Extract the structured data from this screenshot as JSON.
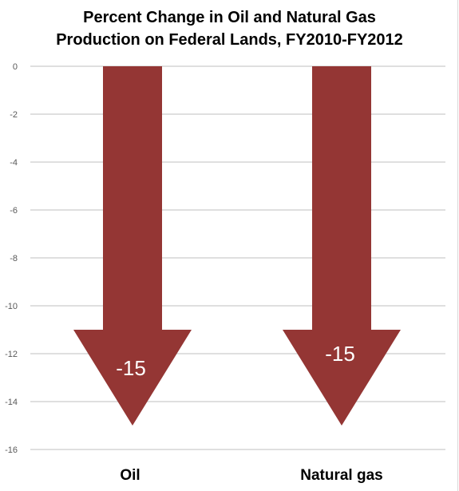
{
  "chart_data": {
    "type": "bar",
    "title": [
      "Percent Change in Oil and Natural Gas",
      "Production on Federal Lands, FY2010-FY2012"
    ],
    "categories": [
      "Oil",
      "Natural gas"
    ],
    "values": [
      -15,
      -15
    ],
    "data_labels": [
      "-15",
      "-15"
    ],
    "ylim": [
      -16,
      0
    ],
    "yticks": [
      0,
      -2,
      -4,
      -6,
      -8,
      -10,
      -12,
      -14,
      -16
    ],
    "ytick_labels": [
      "0",
      "-2",
      "-4",
      "-6",
      "-8",
      "-10",
      "-12",
      "-14",
      "-16"
    ],
    "grid": true,
    "legend": "none",
    "mark_shape": "down-arrow",
    "colors": {
      "bar": "#943634",
      "grid": "#bfbfbf",
      "axis_text": "#595959",
      "label_text": "#ffffff",
      "category_text": "#000000"
    }
  }
}
